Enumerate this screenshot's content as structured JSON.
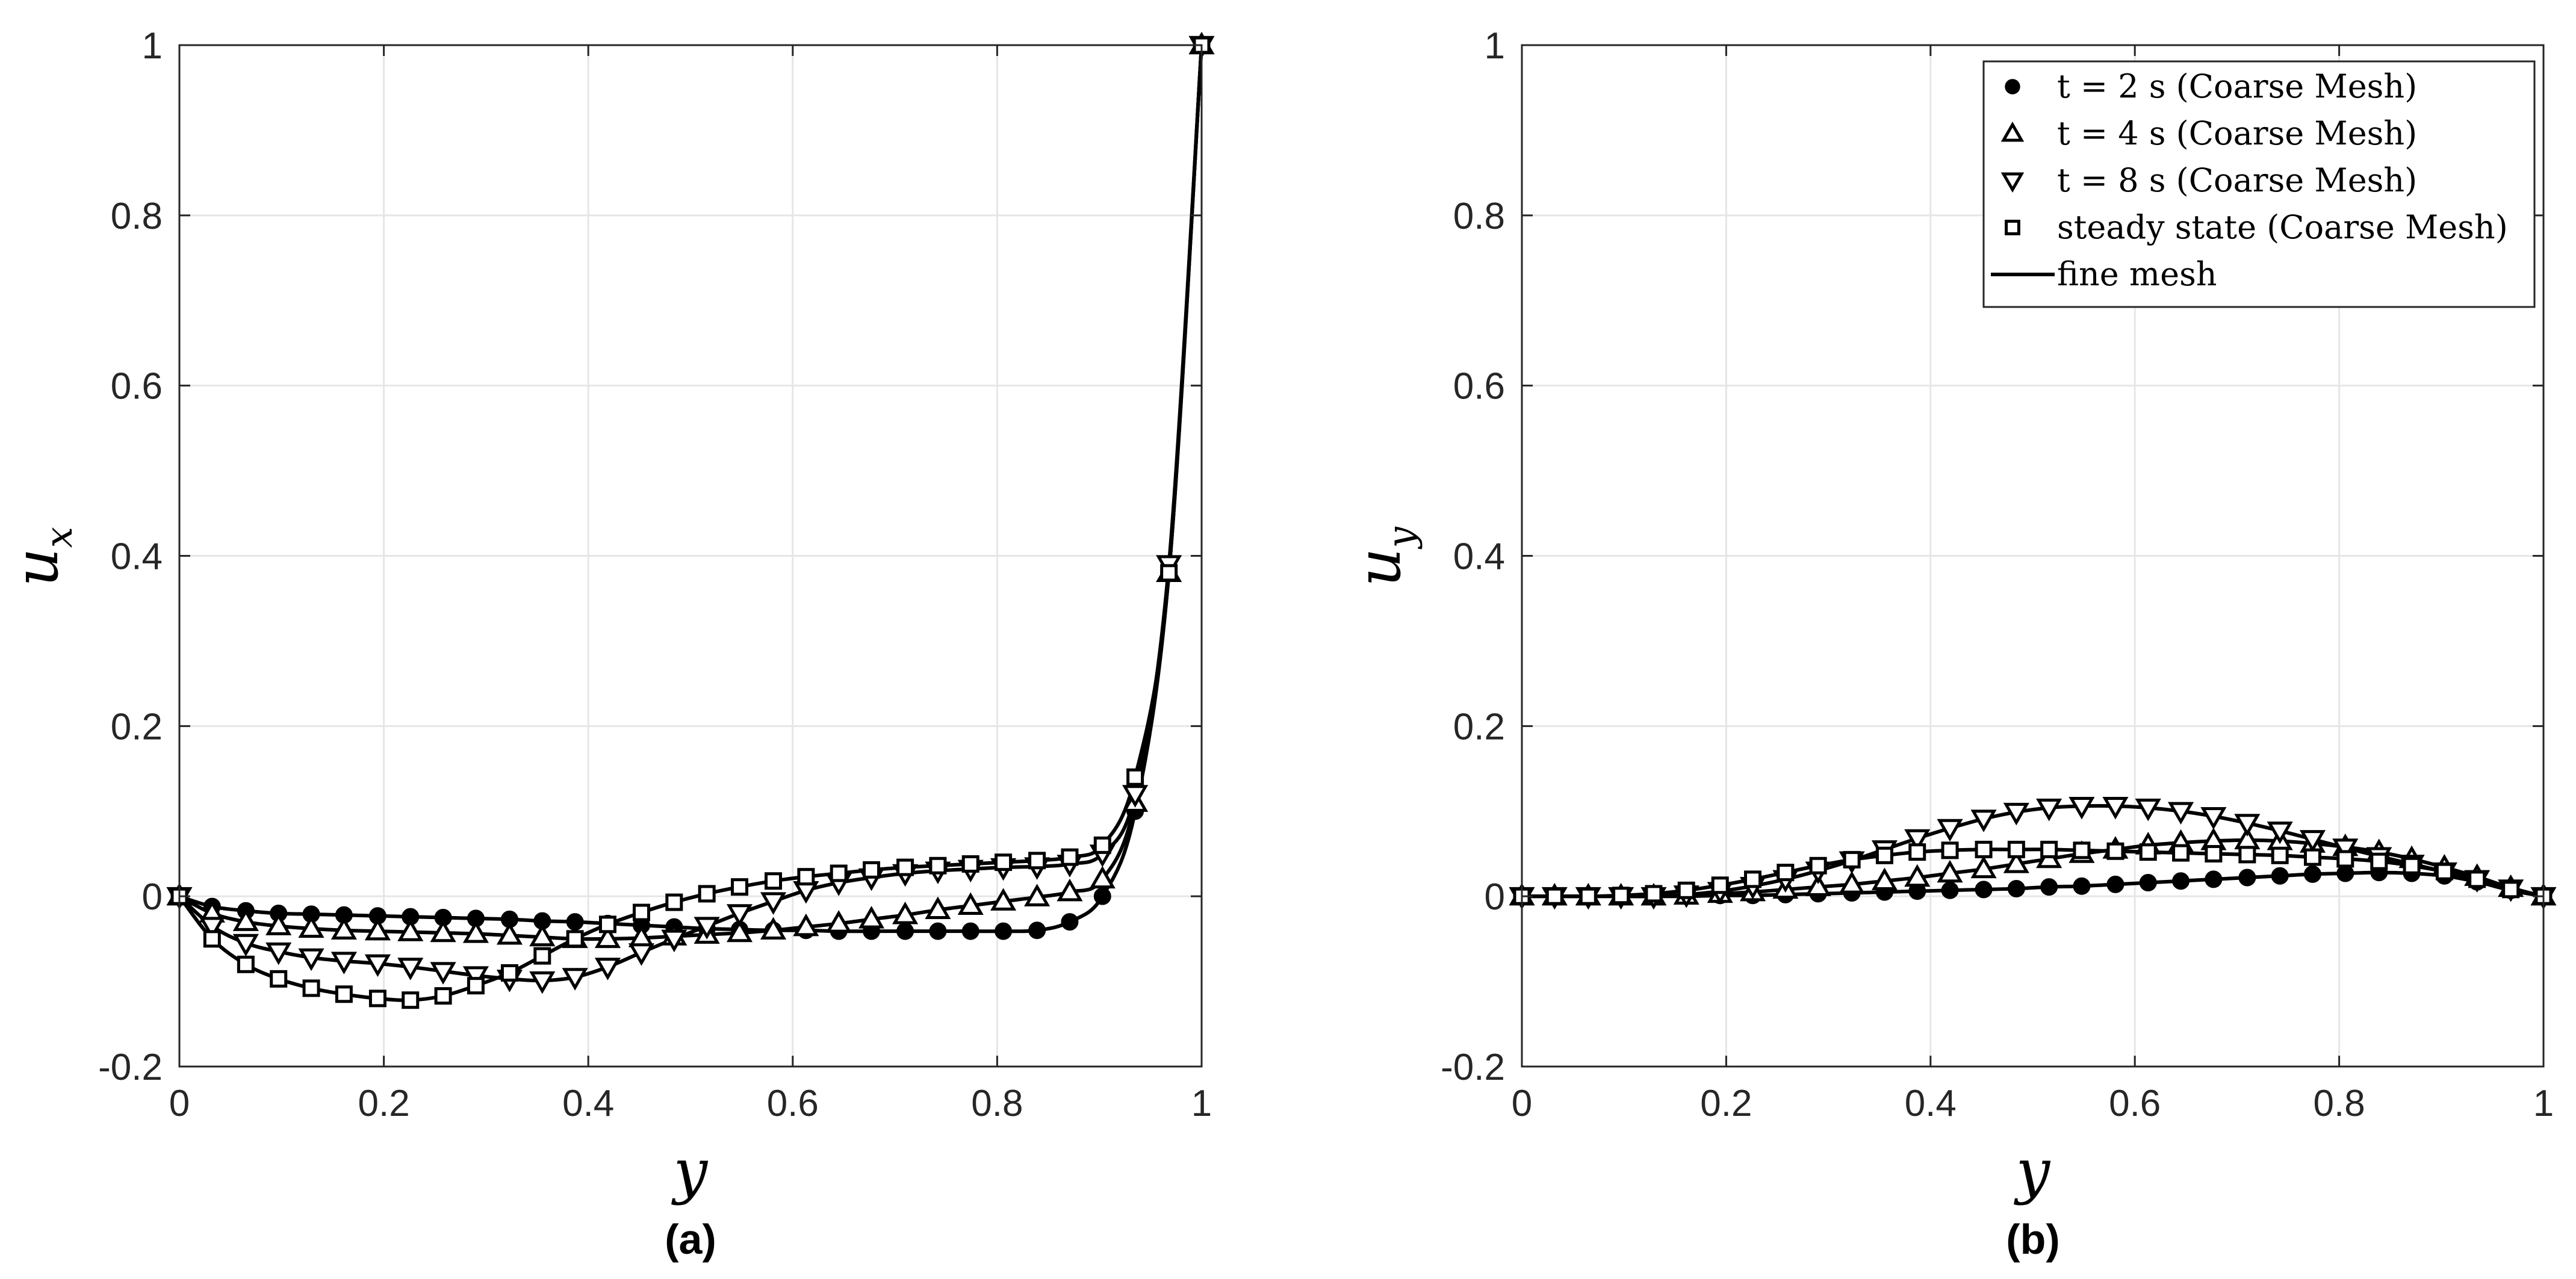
{
  "chart_data": [
    {
      "type": "line",
      "caption": "(a)",
      "xlabel": "y",
      "ylabel": "u",
      "ylabel_sub": "x",
      "xlim": [
        0,
        1
      ],
      "ylim": [
        -0.2,
        1
      ],
      "xticks": [
        "0",
        "0.2",
        "0.4",
        "0.6",
        "0.8",
        "1"
      ],
      "yticks": [
        "-0.2",
        "0",
        "0.2",
        "0.4",
        "0.6",
        "0.8",
        "1"
      ],
      "grid": true,
      "x": [
        0,
        0.032,
        0.065,
        0.097,
        0.129,
        0.161,
        0.194,
        0.226,
        0.258,
        0.29,
        0.323,
        0.355,
        0.387,
        0.419,
        0.452,
        0.484,
        0.516,
        0.548,
        0.581,
        0.613,
        0.645,
        0.677,
        0.71,
        0.742,
        0.774,
        0.806,
        0.839,
        0.871,
        0.903,
        0.935,
        0.968,
        1
      ],
      "series": [
        {
          "name": "t = 2 s (Coarse Mesh)",
          "marker": "circle",
          "values": [
            0,
            -0.012,
            -0.017,
            -0.02,
            -0.021,
            -0.022,
            -0.023,
            -0.024,
            -0.025,
            -0.026,
            -0.027,
            -0.029,
            -0.03,
            -0.032,
            -0.034,
            -0.036,
            -0.038,
            -0.039,
            -0.04,
            -0.04,
            -0.041,
            -0.041,
            -0.041,
            -0.041,
            -0.041,
            -0.041,
            -0.04,
            -0.03,
            0.0,
            0.1,
            0.38,
            1.0
          ]
        },
        {
          "name": "t = 4 s (Coarse Mesh)",
          "marker": "triangle-up",
          "values": [
            0,
            -0.02,
            -0.03,
            -0.035,
            -0.038,
            -0.04,
            -0.041,
            -0.042,
            -0.043,
            -0.044,
            -0.046,
            -0.048,
            -0.05,
            -0.05,
            -0.049,
            -0.047,
            -0.045,
            -0.043,
            -0.04,
            -0.036,
            -0.032,
            -0.027,
            -0.022,
            -0.016,
            -0.011,
            -0.006,
            -0.001,
            0.005,
            0.02,
            0.11,
            0.38,
            1.0
          ]
        },
        {
          "name": "t = 8 s (Coarse Mesh)",
          "marker": "triangle-down",
          "values": [
            0,
            -0.035,
            -0.055,
            -0.065,
            -0.072,
            -0.076,
            -0.079,
            -0.083,
            -0.088,
            -0.093,
            -0.097,
            -0.099,
            -0.095,
            -0.083,
            -0.066,
            -0.05,
            -0.035,
            -0.02,
            -0.006,
            0.007,
            0.016,
            0.022,
            0.027,
            0.03,
            0.032,
            0.034,
            0.035,
            0.038,
            0.05,
            0.12,
            0.39,
            1.0
          ]
        },
        {
          "name": "steady state (Coarse Mesh)",
          "marker": "square",
          "values": [
            0,
            -0.05,
            -0.08,
            -0.097,
            -0.108,
            -0.115,
            -0.12,
            -0.122,
            -0.117,
            -0.105,
            -0.09,
            -0.07,
            -0.05,
            -0.033,
            -0.019,
            -0.007,
            0.003,
            0.011,
            0.018,
            0.023,
            0.027,
            0.031,
            0.034,
            0.036,
            0.038,
            0.04,
            0.042,
            0.046,
            0.06,
            0.14,
            0.38,
            1.0
          ]
        }
      ],
      "fine_mesh_label": "fine mesh"
    },
    {
      "type": "line",
      "caption": "(b)",
      "xlabel": "y",
      "ylabel": "u",
      "ylabel_sub": "y",
      "xlim": [
        0,
        1
      ],
      "ylim": [
        -0.2,
        1
      ],
      "xticks": [
        "0",
        "0.2",
        "0.4",
        "0.6",
        "0.8",
        "1"
      ],
      "yticks": [
        "-0.2",
        "0",
        "0.2",
        "0.4",
        "0.6",
        "0.8",
        "1"
      ],
      "grid": true,
      "legend_position": "top-right",
      "x": [
        0,
        0.032,
        0.065,
        0.097,
        0.129,
        0.161,
        0.194,
        0.226,
        0.258,
        0.29,
        0.323,
        0.355,
        0.387,
        0.419,
        0.452,
        0.484,
        0.516,
        0.548,
        0.581,
        0.613,
        0.645,
        0.677,
        0.71,
        0.742,
        0.774,
        0.806,
        0.839,
        0.871,
        0.903,
        0.935,
        0.968,
        1
      ],
      "series": [
        {
          "name": "t = 2 s (Coarse Mesh)",
          "marker": "circle",
          "values": [
            0,
            0,
            0,
            0,
            0,
            0.0,
            0.001,
            0.001,
            0.002,
            0.003,
            0.004,
            0.005,
            0.006,
            0.007,
            0.008,
            0.009,
            0.011,
            0.012,
            0.014,
            0.016,
            0.018,
            0.02,
            0.022,
            0.024,
            0.026,
            0.027,
            0.028,
            0.027,
            0.024,
            0.017,
            0.007,
            0
          ]
        },
        {
          "name": "t = 4 s (Coarse Mesh)",
          "marker": "triangle-up",
          "values": [
            0,
            0,
            0,
            0,
            0,
            0.001,
            0.003,
            0.005,
            0.008,
            0.011,
            0.014,
            0.018,
            0.022,
            0.027,
            0.032,
            0.038,
            0.044,
            0.05,
            0.055,
            0.06,
            0.063,
            0.065,
            0.066,
            0.065,
            0.062,
            0.058,
            0.052,
            0.044,
            0.034,
            0.023,
            0.01,
            0
          ]
        },
        {
          "name": "t = 8 s (Coarse Mesh)",
          "marker": "triangle-down",
          "values": [
            0,
            0,
            0,
            0,
            0,
            0.002,
            0.006,
            0.012,
            0.02,
            0.03,
            0.042,
            0.055,
            0.068,
            0.08,
            0.091,
            0.099,
            0.104,
            0.106,
            0.106,
            0.104,
            0.1,
            0.094,
            0.086,
            0.077,
            0.067,
            0.057,
            0.047,
            0.038,
            0.029,
            0.02,
            0.009,
            0
          ]
        },
        {
          "name": "steady state (Coarse Mesh)",
          "marker": "square",
          "values": [
            0,
            0,
            0,
            0.001,
            0.003,
            0.007,
            0.013,
            0.02,
            0.028,
            0.036,
            0.043,
            0.048,
            0.052,
            0.054,
            0.055,
            0.055,
            0.055,
            0.054,
            0.053,
            0.052,
            0.051,
            0.05,
            0.049,
            0.048,
            0.046,
            0.044,
            0.041,
            0.036,
            0.029,
            0.02,
            0.008,
            0
          ]
        }
      ],
      "legend": [
        {
          "label": "t = 2 s (Coarse Mesh)",
          "marker": "circle"
        },
        {
          "label": "t = 4 s (Coarse Mesh)",
          "marker": "triangle-up"
        },
        {
          "label": "t = 8 s (Coarse Mesh)",
          "marker": "triangle-down"
        },
        {
          "label": "steady state (Coarse Mesh)",
          "marker": "square"
        },
        {
          "label": "fine mesh",
          "marker": "line"
        }
      ]
    }
  ]
}
